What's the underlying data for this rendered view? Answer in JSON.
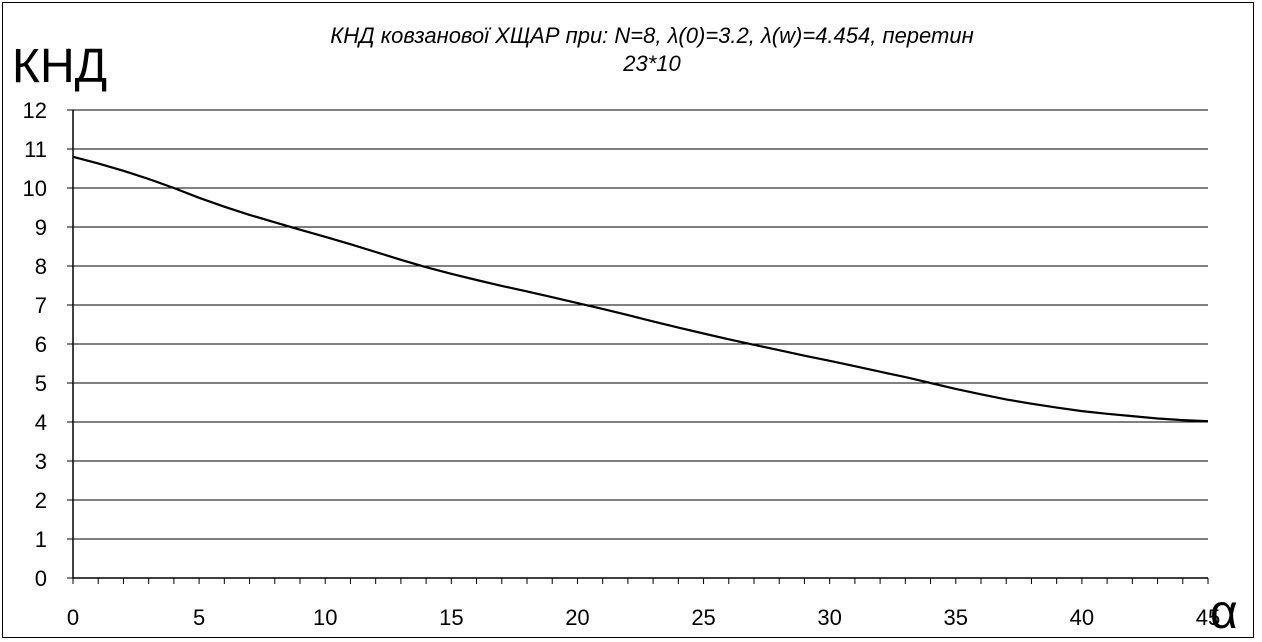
{
  "chart_data": {
    "type": "line",
    "title_line1": "КНД ковзанової ХЩАР при: N=8, λ(0)=3.2, λ(w)=4.454, перетин",
    "title_line2": "23*10",
    "ylabel": "КНД",
    "xlabel": "α",
    "xlim": [
      0,
      45
    ],
    "ylim": [
      0,
      12
    ],
    "x_ticks": [
      "0",
      "5",
      "10",
      "15",
      "20",
      "25",
      "30",
      "35",
      "40",
      "45"
    ],
    "y_ticks": [
      "0",
      "1",
      "2",
      "3",
      "4",
      "5",
      "6",
      "7",
      "8",
      "9",
      "10",
      "11",
      "12"
    ],
    "grid": "horizontal",
    "series": [
      {
        "x": [
          0,
          1,
          2,
          3,
          4,
          5,
          6,
          7,
          8,
          9,
          10,
          11,
          12,
          13,
          14,
          15,
          16,
          17,
          18,
          19,
          20,
          21,
          22,
          23,
          24,
          25,
          26,
          27,
          28,
          29,
          30,
          31,
          32,
          33,
          34,
          35,
          36,
          37,
          38,
          39,
          40,
          41,
          42,
          43,
          44,
          45
        ],
        "y": [
          10.8,
          10.63,
          10.44,
          10.23,
          10.0,
          9.75,
          9.52,
          9.31,
          9.12,
          8.93,
          8.75,
          8.56,
          8.36,
          8.16,
          7.97,
          7.8,
          7.64,
          7.49,
          7.35,
          7.2,
          7.05,
          6.9,
          6.74,
          6.58,
          6.42,
          6.27,
          6.12,
          5.98,
          5.84,
          5.7,
          5.57,
          5.43,
          5.29,
          5.15,
          5.0,
          4.85,
          4.71,
          4.58,
          4.47,
          4.37,
          4.28,
          4.21,
          4.15,
          4.09,
          4.05,
          4.02
        ]
      }
    ],
    "colors": {
      "line": "#000000",
      "grid": "#000000",
      "background": "#ffffff"
    }
  }
}
